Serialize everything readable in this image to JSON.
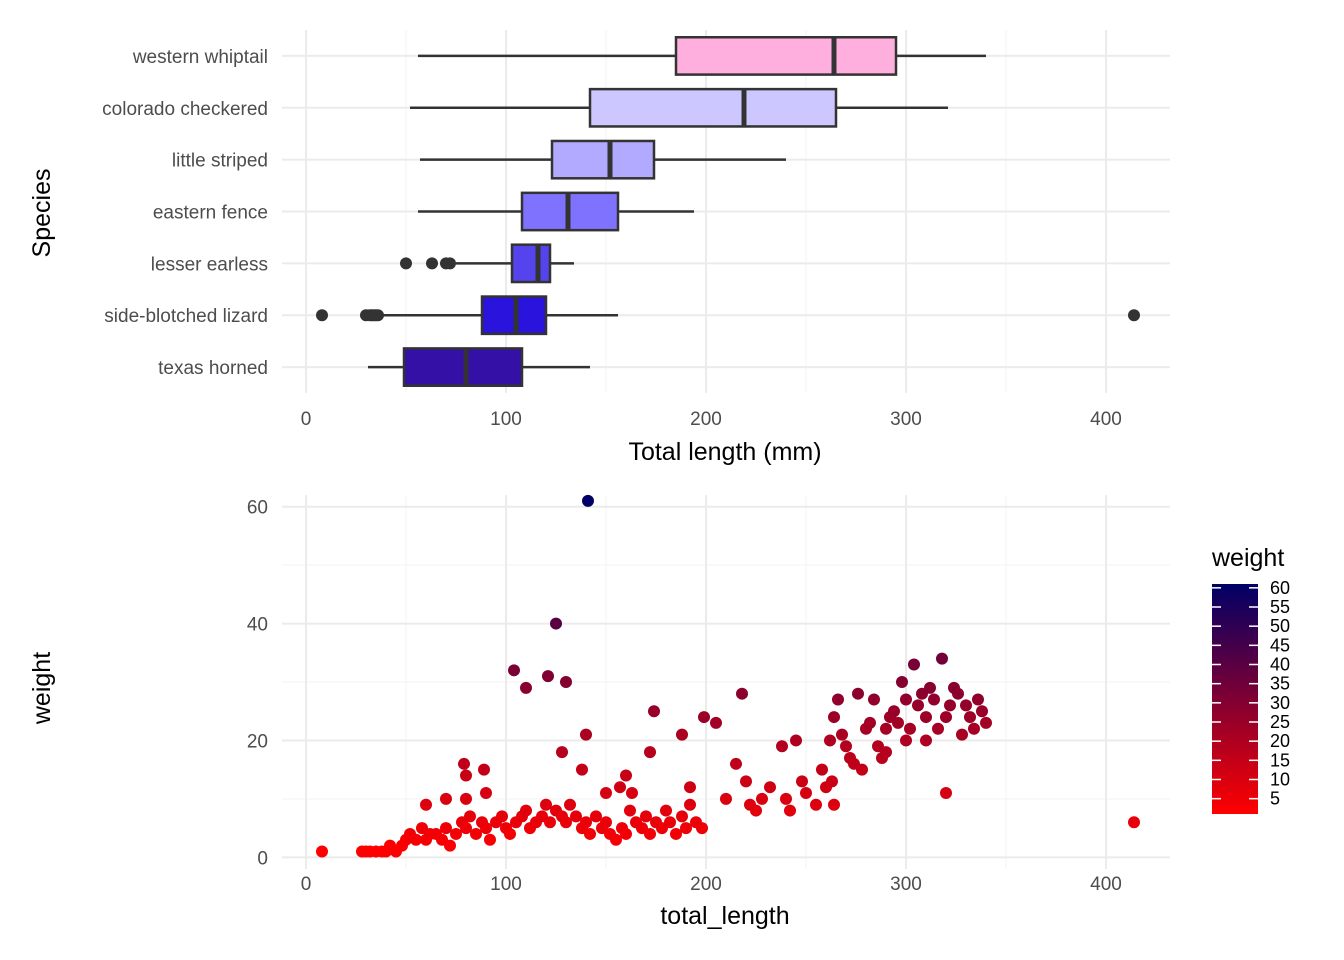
{
  "chart_data": [
    {
      "type": "box",
      "orientation": "horizontal",
      "xlabel": "Total length (mm)",
      "ylabel": "Species",
      "xlim": [
        -12,
        432
      ],
      "x_ticks": [
        0,
        100,
        200,
        300,
        400
      ],
      "grid": true,
      "categories": [
        "western whiptail",
        "colorado checkered",
        "little striped",
        "eastern fence",
        "lesser earless",
        "side-blotched lizard",
        "texas horned"
      ],
      "boxes": [
        {
          "category": "western whiptail",
          "whisker_low": 56,
          "q1": 185,
          "median": 264,
          "q3": 295,
          "whisker_high": 340,
          "outliers": [],
          "fill": "#ffafdd"
        },
        {
          "category": "colorado checkered",
          "whisker_low": 52,
          "q1": 142,
          "median": 219,
          "q3": 265,
          "whisker_high": 321,
          "outliers": [],
          "fill": "#ccc8ff"
        },
        {
          "category": "little striped",
          "whisker_low": 57,
          "q1": 123,
          "median": 152,
          "q3": 174,
          "whisker_high": 240,
          "outliers": [],
          "fill": "#b2aaff"
        },
        {
          "category": "eastern fence",
          "whisker_low": 56,
          "q1": 108,
          "median": 131,
          "q3": 156,
          "whisker_high": 194,
          "outliers": [],
          "fill": "#7f72ff"
        },
        {
          "category": "lesser earless",
          "whisker_low": 75,
          "q1": 103,
          "median": 116,
          "q3": 122,
          "whisker_high": 134,
          "outliers": [
            50,
            63,
            70,
            72
          ],
          "fill": "#5544ee"
        },
        {
          "category": "side-blotched lizard",
          "whisker_low": 38,
          "q1": 88,
          "median": 105,
          "q3": 120,
          "whisker_high": 156,
          "outliers": [
            8,
            30,
            32,
            33,
            34,
            35,
            36,
            414
          ],
          "fill": "#2a13dd"
        },
        {
          "category": "texas horned",
          "whisker_low": 31,
          "q1": 49,
          "median": 80,
          "q3": 108,
          "whisker_high": 142,
          "outliers": [],
          "fill": "#3510a6"
        }
      ]
    },
    {
      "type": "scatter",
      "xlabel": "total_length",
      "ylabel": "weight",
      "xlim": [
        -12,
        432
      ],
      "ylim": [
        -2,
        62
      ],
      "x_ticks": [
        0,
        100,
        200,
        300,
        400
      ],
      "y_ticks": [
        0,
        20,
        40,
        60
      ],
      "grid": true,
      "legend": {
        "title": "weight",
        "position": "right",
        "type": "colorbar",
        "labels": [
          5,
          10,
          15,
          20,
          25,
          30,
          35,
          40,
          45,
          50,
          55,
          60
        ],
        "range": [
          1,
          61
        ],
        "colors": {
          "low": "#ff0000",
          "high": "#000066"
        }
      },
      "points": [
        [
          8,
          1
        ],
        [
          28,
          1
        ],
        [
          30,
          1
        ],
        [
          32,
          1
        ],
        [
          35,
          1
        ],
        [
          38,
          1
        ],
        [
          40,
          1
        ],
        [
          42,
          2
        ],
        [
          45,
          1
        ],
        [
          48,
          2
        ],
        [
          50,
          3
        ],
        [
          52,
          4
        ],
        [
          55,
          3
        ],
        [
          58,
          5
        ],
        [
          60,
          3
        ],
        [
          62,
          4
        ],
        [
          65,
          4
        ],
        [
          68,
          3
        ],
        [
          70,
          5
        ],
        [
          72,
          2
        ],
        [
          75,
          4
        ],
        [
          78,
          6
        ],
        [
          80,
          5
        ],
        [
          82,
          7
        ],
        [
          85,
          4
        ],
        [
          88,
          6
        ],
        [
          90,
          5
        ],
        [
          92,
          3
        ],
        [
          95,
          6
        ],
        [
          98,
          7
        ],
        [
          100,
          5
        ],
        [
          102,
          4
        ],
        [
          105,
          6
        ],
        [
          108,
          7
        ],
        [
          110,
          8
        ],
        [
          112,
          5
        ],
        [
          115,
          6
        ],
        [
          118,
          7
        ],
        [
          120,
          9
        ],
        [
          122,
          6
        ],
        [
          125,
          8
        ],
        [
          128,
          7
        ],
        [
          130,
          6
        ],
        [
          132,
          9
        ],
        [
          135,
          7
        ],
        [
          138,
          5
        ],
        [
          140,
          6
        ],
        [
          142,
          4
        ],
        [
          145,
          7
        ],
        [
          148,
          5
        ],
        [
          150,
          6
        ],
        [
          152,
          4
        ],
        [
          155,
          3
        ],
        [
          158,
          5
        ],
        [
          160,
          4
        ],
        [
          162,
          8
        ],
        [
          165,
          6
        ],
        [
          168,
          5
        ],
        [
          170,
          7
        ],
        [
          172,
          4
        ],
        [
          175,
          6
        ],
        [
          178,
          5
        ],
        [
          180,
          8
        ],
        [
          182,
          6
        ],
        [
          185,
          4
        ],
        [
          188,
          7
        ],
        [
          190,
          5
        ],
        [
          192,
          9
        ],
        [
          195,
          6
        ],
        [
          198,
          5
        ],
        [
          79,
          16
        ],
        [
          80,
          14
        ],
        [
          89,
          15
        ],
        [
          80,
          10
        ],
        [
          70,
          10
        ],
        [
          60,
          9
        ],
        [
          90,
          11
        ],
        [
          104,
          32
        ],
        [
          110,
          29
        ],
        [
          121,
          31
        ],
        [
          125,
          40
        ],
        [
          130,
          30
        ],
        [
          141,
          61
        ],
        [
          140,
          21
        ],
        [
          138,
          15
        ],
        [
          128,
          18
        ],
        [
          150,
          11
        ],
        [
          157,
          12
        ],
        [
          160,
          14
        ],
        [
          163,
          11
        ],
        [
          174,
          25
        ],
        [
          172,
          18
        ],
        [
          188,
          21
        ],
        [
          192,
          12
        ],
        [
          199,
          24
        ],
        [
          205,
          23
        ],
        [
          210,
          10
        ],
        [
          215,
          16
        ],
        [
          218,
          28
        ],
        [
          220,
          13
        ],
        [
          222,
          9
        ],
        [
          225,
          8
        ],
        [
          228,
          10
        ],
        [
          232,
          12
        ],
        [
          238,
          19
        ],
        [
          240,
          10
        ],
        [
          242,
          8
        ],
        [
          245,
          20
        ],
        [
          248,
          13
        ],
        [
          250,
          11
        ],
        [
          255,
          9
        ],
        [
          258,
          15
        ],
        [
          260,
          12
        ],
        [
          262,
          20
        ],
        [
          264,
          24
        ],
        [
          266,
          27
        ],
        [
          268,
          21
        ],
        [
          270,
          19
        ],
        [
          272,
          17
        ],
        [
          274,
          16
        ],
        [
          276,
          28
        ],
        [
          278,
          15
        ],
        [
          280,
          22
        ],
        [
          282,
          23
        ],
        [
          284,
          27
        ],
        [
          286,
          19
        ],
        [
          288,
          17
        ],
        [
          290,
          22
        ],
        [
          292,
          24
        ],
        [
          294,
          25
        ],
        [
          296,
          23
        ],
        [
          298,
          30
        ],
        [
          300,
          27
        ],
        [
          302,
          22
        ],
        [
          304,
          33
        ],
        [
          306,
          26
        ],
        [
          308,
          28
        ],
        [
          310,
          24
        ],
        [
          312,
          29
        ],
        [
          314,
          27
        ],
        [
          316,
          22
        ],
        [
          318,
          34
        ],
        [
          320,
          24
        ],
        [
          322,
          26
        ],
        [
          324,
          29
        ],
        [
          326,
          28
        ],
        [
          328,
          21
        ],
        [
          330,
          26
        ],
        [
          332,
          24
        ],
        [
          334,
          22
        ],
        [
          336,
          27
        ],
        [
          338,
          25
        ],
        [
          340,
          23
        ],
        [
          320,
          11
        ],
        [
          264,
          9
        ],
        [
          263,
          13
        ],
        [
          300,
          20
        ],
        [
          310,
          20
        ],
        [
          290,
          18
        ],
        [
          414,
          6
        ]
      ]
    }
  ]
}
